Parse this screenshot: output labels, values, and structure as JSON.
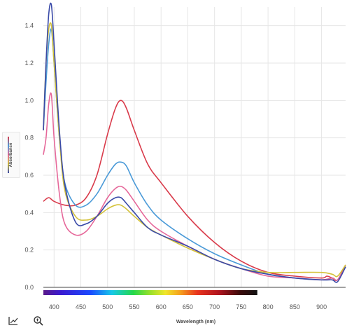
{
  "chart_data": {
    "type": "line",
    "xlabel": "Wavelength (nm)",
    "ylabel": "Absorbance",
    "xlim": [
      380,
      945
    ],
    "ylim": [
      0.0,
      1.5
    ],
    "x_ticks": [
      400,
      450,
      500,
      550,
      600,
      650,
      700,
      750,
      800,
      850,
      900
    ],
    "y_ticks": [
      0.0,
      0.2,
      0.4,
      0.6,
      0.8,
      1.0,
      1.2,
      1.4
    ],
    "y_tick_labels": [
      "0.0",
      "0.2",
      "0.4",
      "0.6",
      "0.8",
      "1.0",
      "1.2",
      "1.4"
    ],
    "grid": true,
    "spectrum_bar": {
      "from_nm": 380,
      "to_nm": 780
    },
    "series": [
      {
        "color": "#d93a4a",
        "x": [
          380,
          390,
          400,
          420,
          440,
          460,
          480,
          500,
          515,
          525,
          535,
          550,
          575,
          600,
          650,
          700,
          750,
          800,
          850,
          900,
          910,
          920,
          930,
          945
        ],
        "y": [
          0.46,
          0.48,
          0.46,
          0.44,
          0.44,
          0.48,
          0.6,
          0.82,
          0.96,
          1.0,
          0.96,
          0.84,
          0.66,
          0.56,
          0.38,
          0.24,
          0.14,
          0.08,
          0.06,
          0.05,
          0.06,
          0.05,
          0.04,
          0.12
        ]
      },
      {
        "color": "#4a9ad8",
        "x": [
          380,
          385,
          390,
          395,
          400,
          410,
          420,
          440,
          460,
          480,
          500,
          515,
          525,
          535,
          550,
          575,
          600,
          650,
          700,
          750,
          800,
          850,
          900,
          920,
          930,
          945
        ],
        "y": [
          0.84,
          1.1,
          1.3,
          1.38,
          1.2,
          0.8,
          0.56,
          0.44,
          0.44,
          0.5,
          0.6,
          0.66,
          0.67,
          0.65,
          0.56,
          0.44,
          0.36,
          0.26,
          0.18,
          0.12,
          0.07,
          0.05,
          0.04,
          0.05,
          0.04,
          0.11
        ]
      },
      {
        "color": "#e6689a",
        "x": [
          380,
          385,
          390,
          395,
          400,
          410,
          420,
          440,
          460,
          480,
          500,
          515,
          525,
          535,
          550,
          575,
          600,
          650,
          700,
          750,
          800,
          850,
          900,
          920,
          930,
          945
        ],
        "y": [
          0.71,
          0.8,
          0.98,
          1.03,
          0.8,
          0.5,
          0.34,
          0.28,
          0.3,
          0.38,
          0.48,
          0.53,
          0.54,
          0.52,
          0.46,
          0.36,
          0.3,
          0.22,
          0.15,
          0.1,
          0.06,
          0.05,
          0.04,
          0.05,
          0.04,
          0.11
        ]
      },
      {
        "color": "#d4c23a",
        "x": [
          380,
          385,
          390,
          395,
          400,
          410,
          420,
          440,
          460,
          480,
          500,
          515,
          525,
          535,
          550,
          575,
          600,
          650,
          700,
          750,
          800,
          850,
          900,
          920,
          930,
          945
        ],
        "y": [
          0.84,
          1.2,
          1.38,
          1.4,
          1.2,
          0.8,
          0.52,
          0.38,
          0.36,
          0.38,
          0.42,
          0.44,
          0.44,
          0.42,
          0.38,
          0.32,
          0.28,
          0.21,
          0.15,
          0.1,
          0.08,
          0.08,
          0.08,
          0.07,
          0.06,
          0.12
        ]
      },
      {
        "color": "#3a4aa8",
        "x": [
          380,
          385,
          390,
          395,
          400,
          410,
          420,
          440,
          460,
          480,
          500,
          515,
          525,
          535,
          550,
          575,
          600,
          650,
          700,
          750,
          800,
          850,
          900,
          920,
          930,
          945
        ],
        "y": [
          0.84,
          1.2,
          1.46,
          1.51,
          1.3,
          0.84,
          0.55,
          0.35,
          0.34,
          0.38,
          0.45,
          0.48,
          0.48,
          0.45,
          0.4,
          0.32,
          0.28,
          0.22,
          0.15,
          0.1,
          0.07,
          0.05,
          0.04,
          0.04,
          0.03,
          0.11
        ]
      }
    ]
  },
  "toolbar": {
    "tools": [
      {
        "icon": "axis-scale-icon"
      },
      {
        "icon": "zoom-icon"
      }
    ]
  }
}
